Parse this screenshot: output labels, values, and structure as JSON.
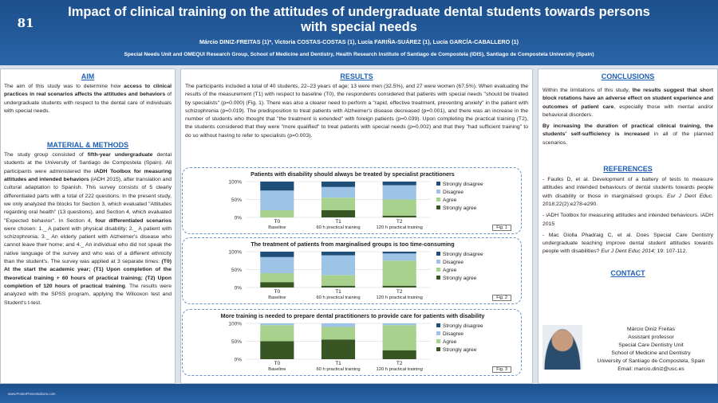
{
  "header": {
    "poster_number": "81",
    "title": "Impact of clinical training on the attitudes of undergraduate dental students towards persons with special needs",
    "authors": "Márcio DINIZ-FREITAS (1)*, Victoria COSTAS-COSTAS (1), Lucía FARIÑA-SUÁREZ (1), Lucía GARCÍA-CABALLERO (1)",
    "affiliation": "Special Needs Unit and OMEQUI Research Group, School of Medicine and Dentistry, Health Research Institute of Santiago de Compostela (IDIS), Santiago de Compostela University (Spain)"
  },
  "aim": {
    "title": "AIM",
    "p1": "The aim of this study was to determine how",
    "p1b": "access to clinical practices in real scenarios affects the attitudes and behaviors",
    "p1c": "of undergraduate students with respect to the dental care of individuals with special needs."
  },
  "methods": {
    "title": "MATERIAL & METHODS",
    "s1a": "The study group consisted of",
    "s1b": "fifth-year undergraduate",
    "s1c": "dental students at the University of Santiago de Compostela (Spain). All participants were administered the",
    "s1d": "iADH Toolbox for measuring attitudes and intended behaviors",
    "s1e": "(iADH 2015), after translation and cultural adaptation to Spanish. This survey consists of 5 clearly differentiated parts with a total of 222 questions. In the present study, we only analyzed the blocks for Section 3, which evaluated \"Attitudes regarding oral health\" (13 questions), and Section 4, which evaluated \"Expected behavior\". In Section 4,",
    "s1f": "four differentiated scenarios",
    "s1g": "were chosen: 1._ A patient with physical disability; 2._ A patient with schizophrenia; 3._ An elderly patient with Alzheimer's disease who cannot leave their home; and 4._ An individual who did not speak the native language of the survey and who was of a different ethnicity than the student's. The survey was applied at 3 separate times:",
    "s1h": "(T0) At the start the academic year; (T1) Upon completion of the theoretical training + 60 hours of practical training; (T2) Upon completion of 120 hours of practical training",
    "s1i": ". The results were analyzed with the SPSS program, applying the Wilcoxon test and Student's t-test."
  },
  "results": {
    "title": "RESULTS",
    "r1": "The participants included a total of 40 students, 22–23 years of age; 13 were men (32.5%), and 27 were women (67.5%). When evaluating the results of the measurement (T1) with respect to baseline (T0), the respondents considered that patients with special needs \"should be treated by specialists\" (p=0.000) (Fig. 1). There was also a clearer need to perform a \"rapid, effective treatment, preventing anxiety\" in the patient with schizophrenia (p=0.019). The predisposition to treat patients with Alzheimer's disease decreased (p=0.001), and there was an increase in the number of students who thought that \"the treatment is extended\" with foreign patients (p=0.039). Upon completing the practical training (T2), the students considered that they were \"more qualified\" to treat patients with special needs (p=0.002) and that they \"had sufficient training\" to do so without having to refer to specialists (p=0.003)."
  },
  "conclusions": {
    "title": "CONCLUSIONS",
    "c1a": "Within the limitations of this study,",
    "c1b": "the results suggest that short block rotations have an adverse effect on student experience and outcomes of patient care",
    "c1c": ", especially those with mental and/or behavioral disorders.",
    "c2a": "By increasing the duration of practical clinical training, the students' self-sufficiency is increased",
    "c2b": "in all of the planned scenarios."
  },
  "references": {
    "title": "REFERENCES",
    "ref1a": "- Faulks D, et al. Development of a battery of tests to measure attitudes and intended behaviours of dental students towards people with disability or those in marginalised groups.",
    "ref1b": "Eur J Dent Educ.",
    "ref1c": "2018;22(2):e278-e290.",
    "ref2": "- iADH Toolbox for measuring attitudes and intended behaviours. iADH 2015",
    "ref3a": "- Mac Giolla Phadraig C, et al. Does Special Care Dentistry undergraduate teaching improve dental student attitudes towards people with disabilities?",
    "ref3b": "Eur J Dent Educ 2014;",
    "ref3c": "19: 107-112."
  },
  "contact": {
    "title": "CONTACT",
    "name": "Márcio Diniz Freitas",
    "role": "Assistant professor",
    "unit": "Special Care Dentistry Unit",
    "school": "School of Medicine and Dentistry",
    "university": "University of Santiago de Compostela, Spain",
    "email": "Email: marcio.diniz@usc.es"
  },
  "footer": {
    "url": "www.PosterPresentations.com"
  },
  "colors": {
    "strongly_disagree": "#1f4e79",
    "disagree": "#9dc3e6",
    "agree": "#a9d18e",
    "strongly_agree": "#375623"
  },
  "chart_data": [
    {
      "type": "bar",
      "title": "Patients with disability should always be treated by specialist practitioners",
      "fig_label": "Fig. 1",
      "stacked": true,
      "categories": [
        "T0",
        "T1",
        "T2"
      ],
      "category_sublabels": [
        "Baseline",
        "60 h practical training",
        "120 h practical training"
      ],
      "ylim": [
        0,
        100
      ],
      "yticks": [
        "100%",
        "50%",
        "0%"
      ],
      "series": [
        {
          "name": "Strongly agree",
          "values": [
            0,
            20,
            5
          ]
        },
        {
          "name": "Agree",
          "values": [
            20,
            35,
            45
          ]
        },
        {
          "name": "Disagree",
          "values": [
            55,
            30,
            40
          ]
        },
        {
          "name": "Strongly disagree",
          "values": [
            25,
            15,
            10
          ]
        }
      ]
    },
    {
      "type": "bar",
      "title": "The treatment of patients from marginalised groups is too time-consuming",
      "fig_label": "Fig. 2",
      "stacked": true,
      "categories": [
        "T0",
        "T1",
        "T2"
      ],
      "category_sublabels": [
        "Baseline",
        "60 h practical training",
        "120 h practical training"
      ],
      "ylim": [
        0,
        100
      ],
      "yticks": [
        "100%",
        "50%",
        "0%"
      ],
      "series": [
        {
          "name": "Strongly agree",
          "values": [
            15,
            5,
            5
          ]
        },
        {
          "name": "Agree",
          "values": [
            25,
            30,
            70
          ]
        },
        {
          "name": "Disagree",
          "values": [
            45,
            55,
            20
          ]
        },
        {
          "name": "Strongly disagree",
          "values": [
            15,
            10,
            5
          ]
        }
      ]
    },
    {
      "type": "bar",
      "title": "More training is needed to prepare dental practitioners to provide care for patients with disability",
      "fig_label": "Fig. 3",
      "stacked": true,
      "categories": [
        "T0",
        "T1",
        "T2"
      ],
      "category_sublabels": [
        "Baseline",
        "60 h practical training",
        "120 h practical training"
      ],
      "ylim": [
        0,
        100
      ],
      "yticks": [
        "100%",
        "50%",
        "0%"
      ],
      "series": [
        {
          "name": "Strongly agree",
          "values": [
            50,
            55,
            25
          ]
        },
        {
          "name": "Agree",
          "values": [
            45,
            35,
            70
          ]
        },
        {
          "name": "Disagree",
          "values": [
            5,
            10,
            5
          ]
        },
        {
          "name": "Strongly disagree",
          "values": [
            0,
            0,
            0
          ]
        }
      ]
    }
  ]
}
